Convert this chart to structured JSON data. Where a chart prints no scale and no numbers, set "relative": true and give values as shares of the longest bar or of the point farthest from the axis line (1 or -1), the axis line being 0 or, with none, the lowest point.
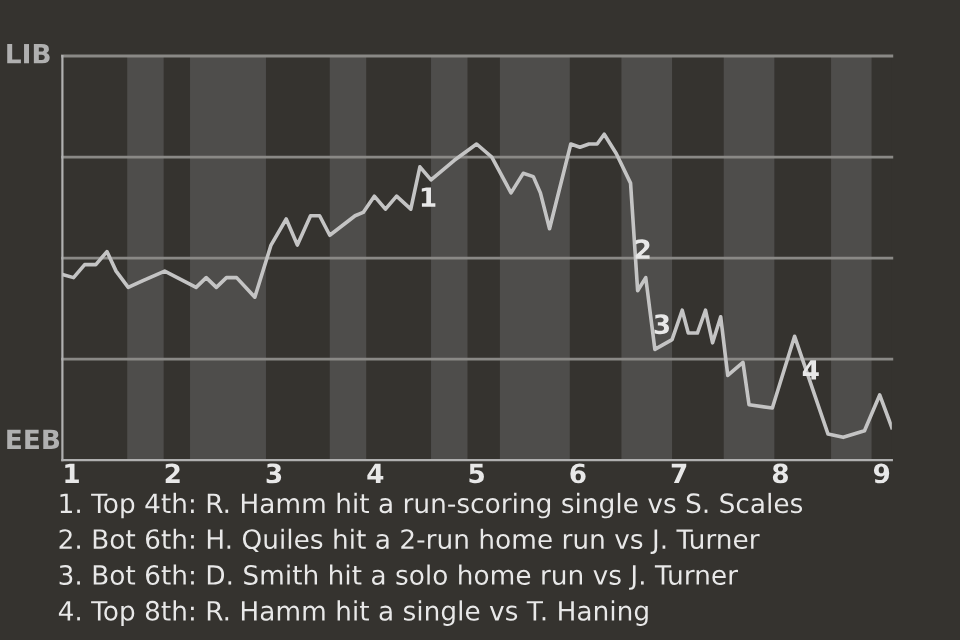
{
  "chart_data": {
    "type": "line",
    "relative": true,
    "x": [
      0.91,
      1.02,
      1.13,
      1.24,
      1.35,
      1.44,
      1.56,
      1.7,
      1.92,
      2.23,
      2.33,
      2.43,
      2.53,
      2.63,
      2.81,
      2.97,
      3.12,
      3.23,
      3.36,
      3.45,
      3.55,
      3.8,
      3.88,
      3.99,
      4.1,
      4.21,
      4.35,
      4.44,
      4.55,
      4.78,
      5.0,
      5.15,
      5.34,
      5.46,
      5.56,
      5.63,
      5.72,
      5.93,
      6.02,
      6.11,
      6.19,
      6.26,
      6.38,
      6.52,
      6.59,
      6.67,
      6.76,
      6.93,
      7.03,
      7.09,
      7.18,
      7.26,
      7.33,
      7.41,
      7.48,
      7.63,
      7.69,
      7.92,
      8.14,
      8.47,
      8.62,
      8.83,
      8.98,
      9.1
    ],
    "series": [
      {
        "color": "#c4c4c4",
        "values": [
          0.57,
          0.56,
          0.6,
          0.6,
          0.64,
          0.58,
          0.53,
          0.55,
          0.58,
          0.53,
          0.56,
          0.53,
          0.56,
          0.56,
          0.5,
          0.66,
          0.74,
          0.66,
          0.75,
          0.75,
          0.69,
          0.75,
          0.76,
          0.81,
          0.77,
          0.81,
          0.77,
          0.9,
          0.86,
          0.92,
          0.97,
          0.93,
          0.82,
          0.88,
          0.87,
          0.82,
          0.71,
          0.97,
          0.96,
          0.97,
          0.97,
          1.0,
          0.94,
          0.85,
          0.52,
          0.56,
          0.34,
          0.37,
          0.46,
          0.39,
          0.39,
          0.46,
          0.36,
          0.44,
          0.26,
          0.3,
          0.17,
          0.16,
          0.38,
          0.08,
          0.07,
          0.09,
          0.2,
          0.1
        ]
      }
    ],
    "xlim": [
      0.91,
      9.1
    ],
    "xticks": [
      1,
      2,
      3,
      4,
      5,
      6,
      7,
      8,
      9
    ],
    "bands": [
      {
        "axis": "x",
        "from": 1.55,
        "to": 1.91,
        "color": "#4e4d4b"
      },
      {
        "axis": "x",
        "from": 2.17,
        "to": 2.92,
        "color": "#4e4d4b"
      },
      {
        "axis": "x",
        "from": 3.55,
        "to": 3.91,
        "color": "#4e4d4b"
      },
      {
        "axis": "x",
        "from": 4.55,
        "to": 4.91,
        "color": "#4e4d4b"
      },
      {
        "axis": "x",
        "from": 5.23,
        "to": 5.92,
        "color": "#4e4d4b"
      },
      {
        "axis": "x",
        "from": 6.43,
        "to": 6.93,
        "color": "#4e4d4b"
      },
      {
        "axis": "x",
        "from": 7.44,
        "to": 7.94,
        "color": "#4e4d4b"
      },
      {
        "axis": "x",
        "from": 8.5,
        "to": 8.9,
        "color": "#4e4d4b"
      }
    ],
    "ref_lines": [
      {
        "axis": "y",
        "value": 0.31,
        "color": "#8a8986"
      },
      {
        "axis": "y",
        "value": 0.62,
        "color": "#8a8986"
      },
      {
        "axis": "y",
        "value": 0.93,
        "color": "#8a8986"
      },
      {
        "axis": "y",
        "value": 1.24,
        "color": "#8a8986"
      }
    ],
    "annotations": [
      "LIB",
      "EEB",
      {
        "text": "1",
        "x": 4.52,
        "y": 0.8
      },
      {
        "text": "2",
        "x": 6.64,
        "y": 0.64
      },
      {
        "text": "3",
        "x": 6.83,
        "y": 0.41
      },
      {
        "text": "4",
        "x": 8.3,
        "y": 0.27
      },
      "1. Top 4th: R. Hamm hit a run-scoring single vs S. Scales",
      "2. Bot 6th: H. Quiles hit a 2-run home run vs J. Turner",
      "3. Bot 6th: D. Smith hit a solo home run vs J. Turner",
      "4. Top 8th: R. Hamm hit a single vs T. Haning"
    ],
    "marker": "none",
    "line_style": "solid"
  }
}
